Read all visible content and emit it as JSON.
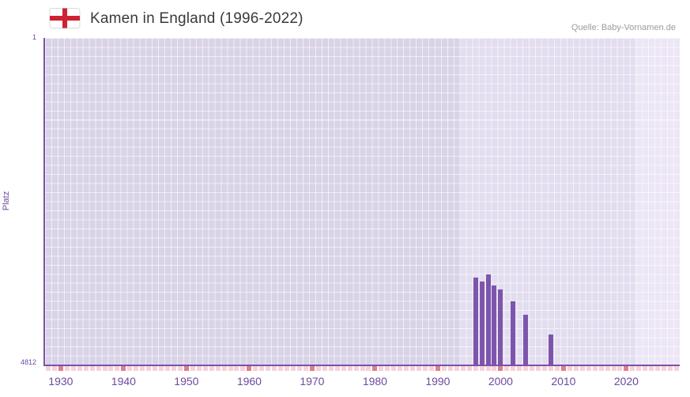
{
  "header": {
    "title": "Kamen in England (1996-2022)",
    "source": "Quelle: Baby-Vornamen.de"
  },
  "chart_data": {
    "type": "bar",
    "title": "Kamen in England (1996-2022)",
    "xlabel": "",
    "ylabel": "Platz",
    "x_range": [
      1928,
      2029
    ],
    "x_ticks": [
      1930,
      1940,
      1950,
      1960,
      1970,
      1980,
      1990,
      2000,
      2010,
      2020
    ],
    "y_axis": {
      "min": 1,
      "max": 4812,
      "inverted": true,
      "top_label": "1",
      "bottom_label": "4812"
    },
    "series": [
      {
        "name": "Platz",
        "color": "#7d55ad",
        "points": [
          {
            "year": 1996,
            "rank": 3530
          },
          {
            "year": 1997,
            "rank": 3590
          },
          {
            "year": 1998,
            "rank": 3480
          },
          {
            "year": 1999,
            "rank": 3650
          },
          {
            "year": 2000,
            "rank": 3700
          },
          {
            "year": 2002,
            "rank": 3880
          },
          {
            "year": 2004,
            "rank": 4080
          },
          {
            "year": 2008,
            "rank": 4370
          }
        ]
      }
    ],
    "background_bands": [
      {
        "from": 1928,
        "to": 1994,
        "color": "#d9d3e7"
      },
      {
        "from": 1994,
        "to": 2022,
        "color": "#e3ddf0"
      },
      {
        "from": 2022,
        "to": 2029,
        "color": "#ece6f6"
      }
    ],
    "grid": true,
    "grid_color": "rgba(255,255,255,0.6)",
    "axis_color": "#7a52a8",
    "tick_colors": {
      "year": "#f5d2da",
      "decade": "#df7f90"
    },
    "flag_colors": {
      "field": "#ffffff",
      "cross": "#cf2134"
    }
  }
}
